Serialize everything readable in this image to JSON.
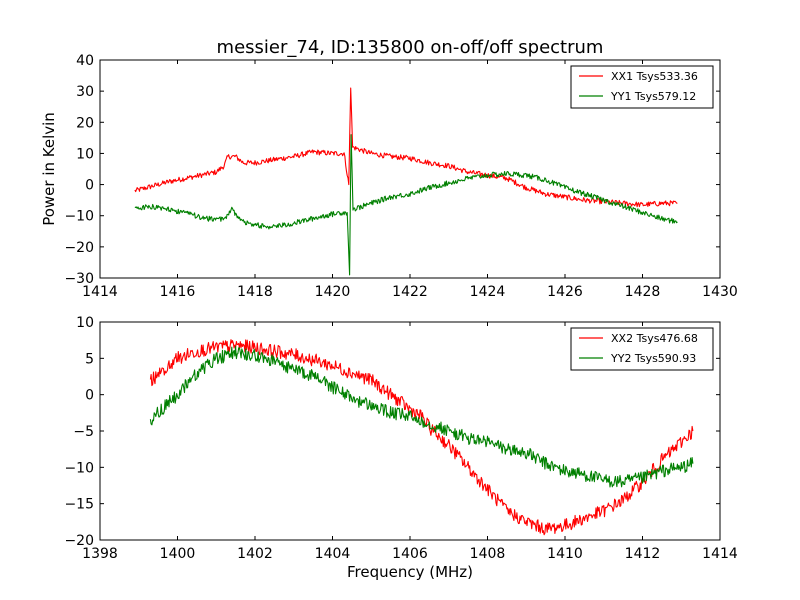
{
  "figure": {
    "title": "messier_74, ID:135800 on-off/off spectrum",
    "ylabel": "Power in Kelvin",
    "xlabel": "Frequency (MHz)"
  },
  "colors": {
    "red": "#ff0000",
    "green": "#008000"
  },
  "chart_data": [
    {
      "type": "line",
      "title": "messier_74, ID:135800 on-off/off spectrum",
      "ylabel": "Power in Kelvin",
      "xlabel": "",
      "xlim": [
        1414,
        1430
      ],
      "ylim": [
        -30,
        40
      ],
      "xticks": [
        1414,
        1416,
        1418,
        1420,
        1422,
        1424,
        1426,
        1428,
        1430
      ],
      "yticks": [
        -30,
        -20,
        -10,
        0,
        10,
        20,
        30,
        40
      ],
      "grid": false,
      "legend": "top-right",
      "series": [
        {
          "name": "XX1 Tsys533.36",
          "color": "#ff0000",
          "points": [
            [
              1414.9,
              -2
            ],
            [
              1415.2,
              -1
            ],
            [
              1415.5,
              0
            ],
            [
              1415.8,
              1
            ],
            [
              1416.2,
              2
            ],
            [
              1416.6,
              3
            ],
            [
              1417.0,
              4
            ],
            [
              1417.2,
              6
            ],
            [
              1417.3,
              9
            ],
            [
              1417.5,
              9
            ],
            [
              1417.7,
              7
            ],
            [
              1418.0,
              7
            ],
            [
              1418.5,
              8
            ],
            [
              1419.0,
              9
            ],
            [
              1419.5,
              10.5
            ],
            [
              1420.0,
              10
            ],
            [
              1420.3,
              10
            ],
            [
              1420.42,
              0
            ],
            [
              1420.47,
              31
            ],
            [
              1420.52,
              12
            ],
            [
              1421.0,
              10
            ],
            [
              1421.5,
              9
            ],
            [
              1422.0,
              8.5
            ],
            [
              1422.5,
              7
            ],
            [
              1423.0,
              6
            ],
            [
              1423.5,
              4
            ],
            [
              1424.0,
              3
            ],
            [
              1424.5,
              2
            ],
            [
              1425.0,
              -1
            ],
            [
              1425.5,
              -3
            ],
            [
              1426.0,
              -4
            ],
            [
              1426.5,
              -5
            ],
            [
              1427.0,
              -5.5
            ],
            [
              1427.5,
              -6
            ],
            [
              1428.0,
              -6.5
            ],
            [
              1428.5,
              -6
            ],
            [
              1428.9,
              -6
            ]
          ]
        },
        {
          "name": "YY1 Tsys579.12",
          "color": "#008000",
          "points": [
            [
              1414.9,
              -7.5
            ],
            [
              1415.3,
              -7
            ],
            [
              1415.8,
              -8
            ],
            [
              1416.3,
              -9.5
            ],
            [
              1416.8,
              -11
            ],
            [
              1417.2,
              -11
            ],
            [
              1417.4,
              -8
            ],
            [
              1417.6,
              -11
            ],
            [
              1417.8,
              -12.5
            ],
            [
              1418.3,
              -13.5
            ],
            [
              1418.8,
              -13
            ],
            [
              1419.3,
              -11.5
            ],
            [
              1419.8,
              -10
            ],
            [
              1420.2,
              -9
            ],
            [
              1420.38,
              -9
            ],
            [
              1420.44,
              -29
            ],
            [
              1420.48,
              16
            ],
            [
              1420.53,
              -8
            ],
            [
              1421.0,
              -6
            ],
            [
              1421.5,
              -4
            ],
            [
              1422.0,
              -3
            ],
            [
              1422.5,
              -1
            ],
            [
              1423.0,
              0.5
            ],
            [
              1423.5,
              2
            ],
            [
              1424.0,
              3
            ],
            [
              1424.5,
              3.5
            ],
            [
              1425.0,
              3
            ],
            [
              1425.5,
              1.5
            ],
            [
              1426.0,
              -1
            ],
            [
              1426.5,
              -3
            ],
            [
              1427.0,
              -5
            ],
            [
              1427.5,
              -7
            ],
            [
              1428.0,
              -9
            ],
            [
              1428.5,
              -11
            ],
            [
              1428.9,
              -12
            ]
          ]
        }
      ]
    },
    {
      "type": "line",
      "title": "",
      "ylabel": "",
      "xlabel": "Frequency (MHz)",
      "xlim": [
        1398,
        1414
      ],
      "ylim": [
        -20,
        10
      ],
      "xticks": [
        1398,
        1400,
        1402,
        1404,
        1406,
        1408,
        1410,
        1412,
        1414
      ],
      "yticks": [
        -20,
        -15,
        -10,
        -5,
        0,
        5,
        10
      ],
      "grid": false,
      "legend": "top-right",
      "series": [
        {
          "name": "XX2 Tsys476.68",
          "color": "#ff0000",
          "points": [
            [
              1399.3,
              2
            ],
            [
              1399.6,
              3
            ],
            [
              1400.0,
              5
            ],
            [
              1400.5,
              6
            ],
            [
              1401.0,
              6.5
            ],
            [
              1401.5,
              6.8
            ],
            [
              1402.0,
              6.5
            ],
            [
              1402.5,
              6
            ],
            [
              1403.0,
              5.5
            ],
            [
              1403.5,
              4.8
            ],
            [
              1404.0,
              4
            ],
            [
              1404.5,
              3
            ],
            [
              1405.0,
              2
            ],
            [
              1405.5,
              0
            ],
            [
              1406.0,
              -2
            ],
            [
              1406.3,
              -3
            ],
            [
              1406.5,
              -4.5
            ],
            [
              1407.0,
              -7
            ],
            [
              1407.5,
              -10
            ],
            [
              1408.0,
              -13
            ],
            [
              1408.5,
              -16
            ],
            [
              1409.0,
              -17.5
            ],
            [
              1409.5,
              -18.5
            ],
            [
              1410.0,
              -18
            ],
            [
              1410.5,
              -17
            ],
            [
              1411.0,
              -16
            ],
            [
              1411.5,
              -14.5
            ],
            [
              1412.0,
              -12
            ],
            [
              1412.5,
              -9
            ],
            [
              1413.0,
              -6.5
            ],
            [
              1413.3,
              -5
            ]
          ]
        },
        {
          "name": "YY2 Tsys590.93",
          "color": "#008000",
          "points": [
            [
              1399.3,
              -3.5
            ],
            [
              1399.6,
              -2
            ],
            [
              1400.0,
              0
            ],
            [
              1400.5,
              3
            ],
            [
              1401.0,
              5
            ],
            [
              1401.5,
              5.8
            ],
            [
              1402.0,
              5.5
            ],
            [
              1402.5,
              4.5
            ],
            [
              1403.0,
              3.5
            ],
            [
              1403.5,
              2.5
            ],
            [
              1404.0,
              1
            ],
            [
              1404.5,
              -0.5
            ],
            [
              1405.0,
              -1.5
            ],
            [
              1405.5,
              -2.5
            ],
            [
              1406.0,
              -3
            ],
            [
              1406.5,
              -4
            ],
            [
              1407.0,
              -5
            ],
            [
              1407.5,
              -6
            ],
            [
              1408.0,
              -6.5
            ],
            [
              1408.5,
              -7.5
            ],
            [
              1409.0,
              -8
            ],
            [
              1409.5,
              -9.5
            ],
            [
              1410.0,
              -10.5
            ],
            [
              1410.5,
              -11
            ],
            [
              1411.0,
              -11.8
            ],
            [
              1411.5,
              -12
            ],
            [
              1412.0,
              -11.5
            ],
            [
              1412.5,
              -10.5
            ],
            [
              1413.0,
              -10
            ],
            [
              1413.3,
              -9.5
            ]
          ]
        }
      ]
    }
  ]
}
